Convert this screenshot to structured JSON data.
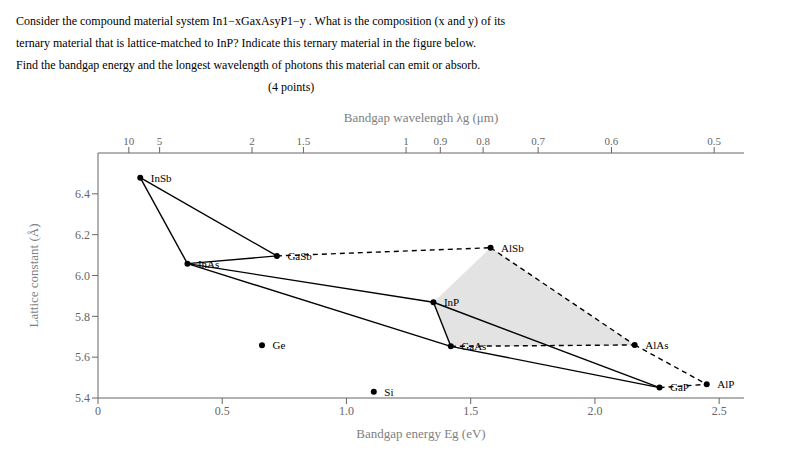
{
  "chart_data": {
    "type": "scatter",
    "text_lines": [
      "Consider the compound material system In1−xGaxAsyP1−y . What is the composition (x and y) of its",
      "ternary material that is lattice-matched to InP? Indicate this ternary material in the figure below.",
      "Find the bandgap energy and the longest wavelength of photons this material can emit or absorb.",
      "                                                                                    (4 points)"
    ],
    "xlabel": "Bandgap energy Eg (eV)",
    "ylabel": "Lattice constant (Å)",
    "top_xlabel": "Bandgap wavelength λg (μm)",
    "xlim": [
      0,
      2.6
    ],
    "ylim": [
      5.4,
      6.6
    ],
    "xticks": [
      0,
      0.5,
      {
        "value": 1,
        "label": "1.0"
      },
      1.5,
      {
        "value": 2,
        "label": "2.0"
      },
      2.5
    ],
    "yticks": [
      5.4,
      5.6,
      5.8,
      {
        "value": 6,
        "label": "6.0"
      },
      6.2,
      6.4
    ],
    "top_xticks": [
      {
        "value": 0.124,
        "label": "10"
      },
      {
        "value": 0.248,
        "label": "5"
      },
      {
        "value": 0.62,
        "label": "2"
      },
      {
        "value": 0.8266666666666667,
        "label": "1.5"
      },
      {
        "value": 1.24,
        "label": "1"
      },
      {
        "value": 1.3777777777777778,
        "label": "0.9"
      },
      {
        "value": 1.55,
        "label": "0.8"
      },
      {
        "value": 1.7714285714285714,
        "label": "0.7"
      },
      {
        "value": 2.066666666666667,
        "label": "0.6"
      },
      {
        "value": 2.48,
        "label": "0.5"
      }
    ],
    "points": [
      {
        "label": "InSb",
        "x": 0.17,
        "y": 6.479
      },
      {
        "label": "InAs",
        "x": 0.36,
        "y": 6.058
      },
      {
        "label": "InP",
        "x": 1.35,
        "y": 5.869
      },
      {
        "label": "GaSb",
        "x": 0.72,
        "y": 6.096
      },
      {
        "label": "GaAs",
        "x": 1.42,
        "y": 5.653
      },
      {
        "label": "GaP",
        "x": 2.26,
        "y": 5.451
      },
      {
        "label": "AlSb",
        "x": 1.58,
        "y": 6.136
      },
      {
        "label": "AlAs",
        "x": 2.16,
        "y": 5.66
      },
      {
        "label": "AlP",
        "x": 2.45,
        "y": 5.467
      },
      {
        "label": "Ge",
        "x": 0.66,
        "y": 5.658
      },
      {
        "label": "Si",
        "x": 1.11,
        "y": 5.431
      }
    ],
    "solid_lines": [
      [
        "InSb",
        "InAs"
      ],
      [
        "InAs",
        "InP"
      ],
      [
        "InP",
        "GaAs"
      ],
      [
        "GaAs",
        "GaP"
      ],
      [
        "InSb",
        "GaSb"
      ],
      [
        "InAs",
        "GaSb"
      ],
      [
        "InAs",
        "GaAs"
      ],
      [
        "InP",
        "GaP"
      ]
    ],
    "dashed_lines": [
      [
        "GaSb",
        "AlSb"
      ],
      [
        "AlSb",
        "AlAs"
      ],
      [
        "AlAs",
        "AlP"
      ],
      [
        "GaAs",
        "AlAs"
      ],
      [
        "GaP",
        "AlP"
      ]
    ],
    "shaded_region": [
      [
        1.35,
        5.869
      ],
      [
        1.42,
        5.653
      ],
      [
        2.16,
        5.66
      ],
      [
        1.58,
        6.136
      ],
      [
        1.35,
        5.869
      ]
    ],
    "grid": false
  }
}
